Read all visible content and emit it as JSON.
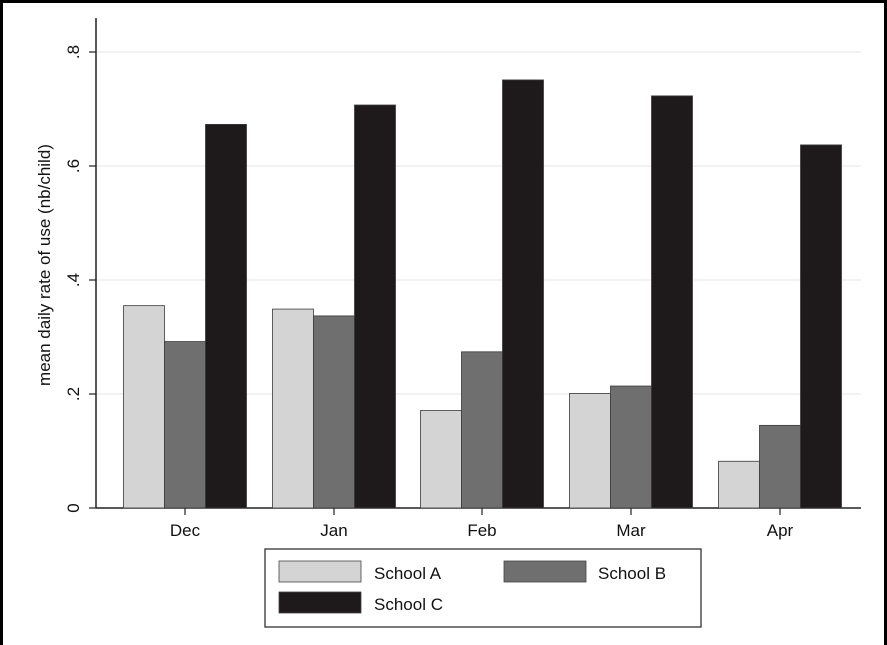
{
  "chart_data": {
    "type": "bar",
    "categories": [
      "Dec",
      "Jan",
      "Feb",
      "Mar",
      "Apr"
    ],
    "series": [
      {
        "name": "School A",
        "color": "#d4d4d4",
        "values": [
          0.355,
          0.349,
          0.171,
          0.201,
          0.082
        ]
      },
      {
        "name": "School B",
        "color": "#6f6f6f",
        "values": [
          0.292,
          0.337,
          0.274,
          0.214,
          0.145
        ]
      },
      {
        "name": "School C",
        "color": "#1e1a1b",
        "values": [
          0.673,
          0.707,
          0.751,
          0.723,
          0.637
        ]
      }
    ],
    "ylabel": "mean daily rate of use (nb/child)",
    "ylim": [
      0,
      0.8
    ],
    "yticks": [
      0,
      0.2,
      0.4,
      0.6,
      0.8
    ],
    "ytick_labels": [
      "0",
      ".2",
      ".4",
      ".6",
      ".8"
    ],
    "grid": true,
    "legend_position": "bottom"
  }
}
